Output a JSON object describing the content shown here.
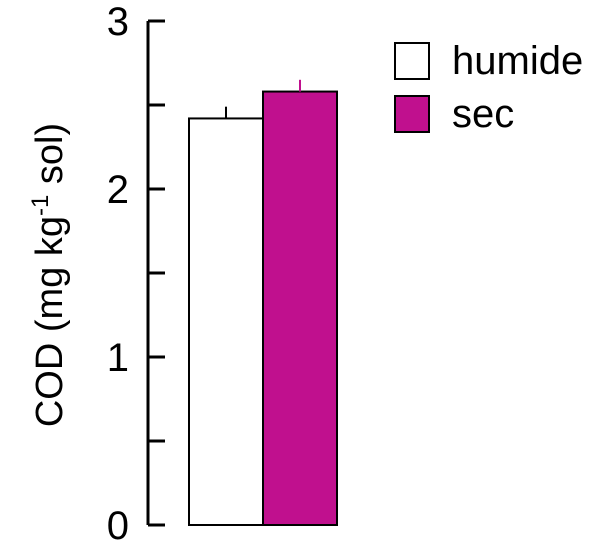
{
  "chart_data": {
    "type": "bar",
    "title": "",
    "xlabel": "",
    "ylabel_main": "COD (mg  kg",
    "ylabel_sup": "-1",
    "ylabel_end": " sol)",
    "ylim": [
      0,
      3
    ],
    "yticks_major": [
      0,
      1,
      2,
      3
    ],
    "yticks_minor": [
      0.5,
      1.5,
      2.5
    ],
    "legend_position": "top-right",
    "grid": false,
    "series": [
      {
        "name": "humide",
        "value": 2.42,
        "error": 0.07,
        "color": "#ffffff"
      },
      {
        "name": "sec",
        "value": 2.58,
        "error": 0.07,
        "color": "#c0108e"
      }
    ]
  }
}
